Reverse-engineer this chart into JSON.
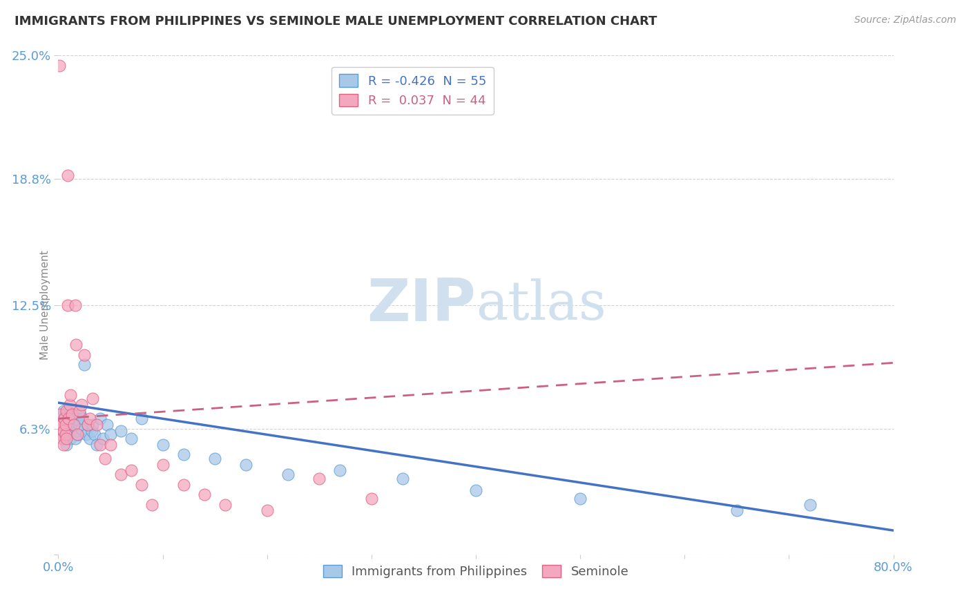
{
  "title": "IMMIGRANTS FROM PHILIPPINES VS SEMINOLE MALE UNEMPLOYMENT CORRELATION CHART",
  "source": "Source: ZipAtlas.com",
  "ylabel": "Male Unemployment",
  "xlim": [
    0.0,
    0.8
  ],
  "ylim": [
    0.0,
    0.25
  ],
  "yticks": [
    0.0,
    0.063,
    0.125,
    0.188,
    0.25
  ],
  "ytick_labels": [
    "",
    "6.3%",
    "12.5%",
    "18.8%",
    "25.0%"
  ],
  "xticks": [
    0.0,
    0.1,
    0.2,
    0.3,
    0.4,
    0.5,
    0.6,
    0.7,
    0.8
  ],
  "blue_R": -0.426,
  "blue_N": 55,
  "pink_R": 0.037,
  "pink_N": 44,
  "blue_color": "#A8C8E8",
  "pink_color": "#F4A8C0",
  "blue_edge_color": "#5B9BD5",
  "pink_edge_color": "#E06080",
  "blue_line_color": "#4472C4",
  "pink_line_color": "#CC6080",
  "watermark_color": "#D0E0EE",
  "title_color": "#333333",
  "axis_label_color": "#5B9BD5",
  "background_color": "#ffffff",
  "grid_color": "#cccccc",
  "blue_scatter_x": [
    0.002,
    0.003,
    0.004,
    0.005,
    0.005,
    0.006,
    0.006,
    0.007,
    0.007,
    0.008,
    0.008,
    0.009,
    0.009,
    0.01,
    0.01,
    0.011,
    0.012,
    0.012,
    0.013,
    0.014,
    0.015,
    0.016,
    0.017,
    0.018,
    0.019,
    0.02,
    0.021,
    0.022,
    0.023,
    0.025,
    0.027,
    0.028,
    0.03,
    0.032,
    0.033,
    0.035,
    0.037,
    0.04,
    0.043,
    0.047,
    0.05,
    0.06,
    0.07,
    0.08,
    0.1,
    0.12,
    0.15,
    0.18,
    0.22,
    0.27,
    0.33,
    0.4,
    0.5,
    0.65,
    0.72
  ],
  "blue_scatter_y": [
    0.068,
    0.07,
    0.065,
    0.072,
    0.06,
    0.068,
    0.058,
    0.065,
    0.062,
    0.07,
    0.055,
    0.068,
    0.063,
    0.06,
    0.072,
    0.065,
    0.068,
    0.058,
    0.062,
    0.07,
    0.065,
    0.058,
    0.068,
    0.062,
    0.06,
    0.065,
    0.07,
    0.063,
    0.068,
    0.095,
    0.06,
    0.065,
    0.058,
    0.062,
    0.065,
    0.06,
    0.055,
    0.068,
    0.058,
    0.065,
    0.06,
    0.062,
    0.058,
    0.068,
    0.055,
    0.05,
    0.048,
    0.045,
    0.04,
    0.042,
    0.038,
    0.032,
    0.028,
    0.022,
    0.025
  ],
  "pink_scatter_x": [
    0.001,
    0.002,
    0.003,
    0.003,
    0.004,
    0.004,
    0.005,
    0.005,
    0.006,
    0.007,
    0.007,
    0.008,
    0.008,
    0.009,
    0.009,
    0.01,
    0.011,
    0.012,
    0.013,
    0.015,
    0.016,
    0.017,
    0.018,
    0.02,
    0.022,
    0.025,
    0.028,
    0.03,
    0.033,
    0.037,
    0.04,
    0.045,
    0.05,
    0.06,
    0.07,
    0.08,
    0.09,
    0.1,
    0.12,
    0.14,
    0.16,
    0.2,
    0.25,
    0.3
  ],
  "pink_scatter_y": [
    0.245,
    0.07,
    0.065,
    0.06,
    0.058,
    0.065,
    0.062,
    0.055,
    0.068,
    0.06,
    0.065,
    0.058,
    0.072,
    0.19,
    0.125,
    0.068,
    0.075,
    0.08,
    0.07,
    0.065,
    0.125,
    0.105,
    0.06,
    0.072,
    0.075,
    0.1,
    0.065,
    0.068,
    0.078,
    0.065,
    0.055,
    0.048,
    0.055,
    0.04,
    0.042,
    0.035,
    0.025,
    0.045,
    0.035,
    0.03,
    0.025,
    0.022,
    0.038,
    0.028
  ],
  "blue_trend_x": [
    0.0,
    0.8
  ],
  "blue_trend_y": [
    0.076,
    0.012
  ],
  "pink_trend_x": [
    0.0,
    0.8
  ],
  "pink_trend_y": [
    0.068,
    0.096
  ]
}
